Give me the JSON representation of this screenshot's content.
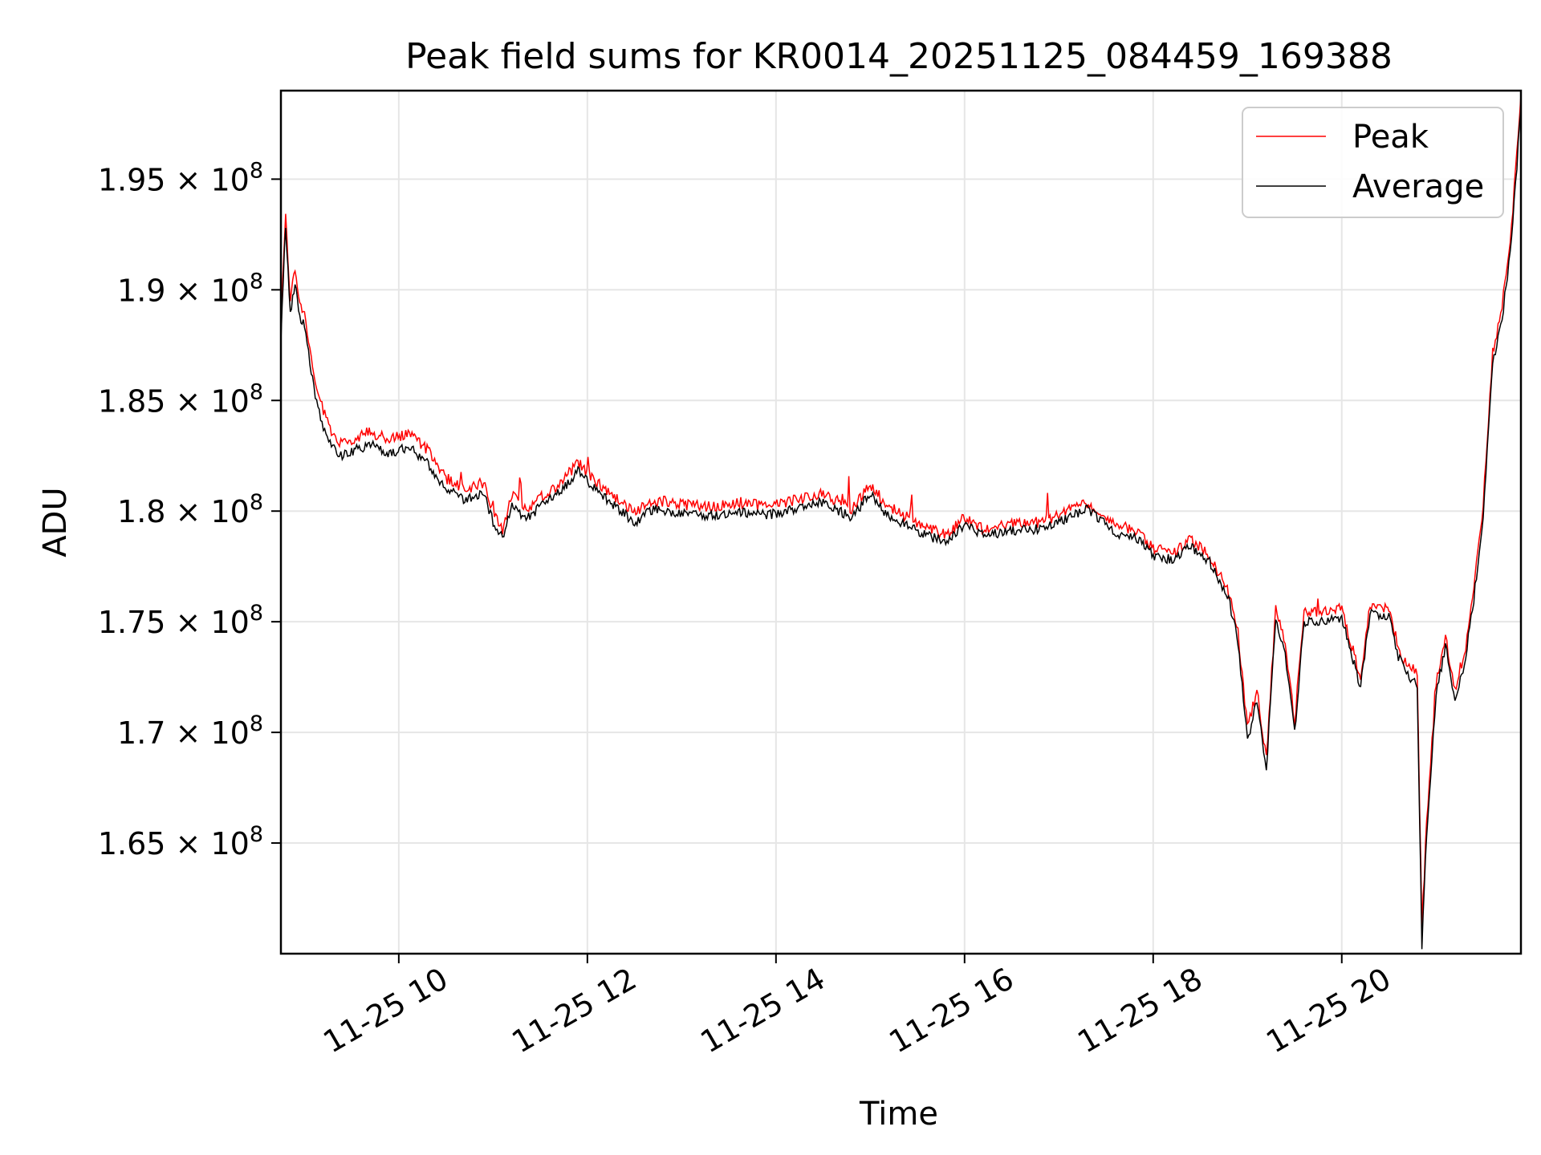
{
  "chart_data": {
    "type": "line",
    "title": "Peak field sums for KR0014_20251125_084459_169388",
    "xlabel": "Time",
    "ylabel": "ADU",
    "xlim": [
      8.75,
      21.9
    ],
    "ylim": [
      160000000,
      199000000
    ],
    "grid": true,
    "legend_position": "top-right",
    "x_ticks": [
      {
        "value": 10,
        "label": "11-25 10"
      },
      {
        "value": 12,
        "label": "11-25 12"
      },
      {
        "value": 14,
        "label": "11-25 14"
      },
      {
        "value": 16,
        "label": "11-25 16"
      },
      {
        "value": 18,
        "label": "11-25 18"
      },
      {
        "value": 20,
        "label": "11-25 20"
      }
    ],
    "y_ticks": [
      {
        "value": 165000000,
        "mantissa": "1.65",
        "exponent": "8"
      },
      {
        "value": 170000000,
        "mantissa": "1.7",
        "exponent": "8"
      },
      {
        "value": 175000000,
        "mantissa": "1.75",
        "exponent": "8"
      },
      {
        "value": 180000000,
        "mantissa": "1.8",
        "exponent": "8"
      },
      {
        "value": 185000000,
        "mantissa": "1.85",
        "exponent": "8"
      },
      {
        "value": 190000000,
        "mantissa": "1.9",
        "exponent": "8"
      },
      {
        "value": 195000000,
        "mantissa": "1.95",
        "exponent": "8"
      }
    ],
    "times_x_label": "× 10",
    "series": [
      {
        "name": "Peak",
        "color": "#ff0000"
      },
      {
        "name": "Average",
        "color": "#000000"
      }
    ],
    "x": [
      8.75,
      8.8,
      8.85,
      8.9,
      8.95,
      9.0,
      9.1,
      9.2,
      9.3,
      9.4,
      9.5,
      9.7,
      9.9,
      10.1,
      10.3,
      10.5,
      10.7,
      10.9,
      11.0,
      11.1,
      11.2,
      11.35,
      11.5,
      11.7,
      11.9,
      12.1,
      12.3,
      12.5,
      12.7,
      13.0,
      13.3,
      13.6,
      13.9,
      14.2,
      14.5,
      14.8,
      15.0,
      15.2,
      15.4,
      15.6,
      15.8,
      16.0,
      16.2,
      16.5,
      16.8,
      17.0,
      17.3,
      17.6,
      17.8,
      18.0,
      18.2,
      18.4,
      18.6,
      18.8,
      18.9,
      19.0,
      19.1,
      19.2,
      19.3,
      19.4,
      19.5,
      19.6,
      19.8,
      20.0,
      20.2,
      20.3,
      20.5,
      20.6,
      20.7,
      20.8,
      20.85,
      20.9,
      21.0,
      21.1,
      21.2,
      21.3,
      21.4,
      21.5,
      21.6,
      21.7,
      21.8,
      21.9
    ],
    "peak": [
      188500000,
      193500000,
      189500000,
      191000000,
      189200000,
      189000000,
      186000000,
      184500000,
      183500000,
      183000000,
      183200000,
      183600000,
      183200000,
      183500000,
      182800000,
      181500000,
      181000000,
      181300000,
      180000000,
      179200000,
      180800000,
      180000000,
      180600000,
      181200000,
      182200000,
      181300000,
      180600000,
      179900000,
      180500000,
      180300000,
      180200000,
      180400000,
      180200000,
      180500000,
      180800000,
      180100000,
      181200000,
      180100000,
      179700000,
      179300000,
      178900000,
      179700000,
      179200000,
      179400000,
      179500000,
      179800000,
      180400000,
      179300000,
      179200000,
      178300000,
      178100000,
      178700000,
      178000000,
      176300000,
      174500000,
      170200000,
      171900000,
      168800000,
      175600000,
      174000000,
      170500000,
      175500000,
      175400000,
      175600000,
      172400000,
      175800000,
      175600000,
      173800000,
      173000000,
      172700000,
      161200000,
      166000000,
      172200000,
      174300000,
      171900000,
      173500000,
      176400000,
      180300000,
      187200000,
      189200000,
      192800000,
      198800000
    ],
    "average": [
      187800000,
      193000000,
      188800000,
      190300000,
      188800000,
      188400000,
      185500000,
      183800000,
      182900000,
      182500000,
      182700000,
      183000000,
      182600000,
      182900000,
      182200000,
      181000000,
      180500000,
      180800000,
      179500000,
      178800000,
      180300000,
      179600000,
      180200000,
      180800000,
      181800000,
      180900000,
      180200000,
      179500000,
      180100000,
      179900000,
      179800000,
      180000000,
      179800000,
      180100000,
      180400000,
      179700000,
      180800000,
      179700000,
      179300000,
      178900000,
      178600000,
      179400000,
      178900000,
      179100000,
      179200000,
      179500000,
      180100000,
      179000000,
      178900000,
      178000000,
      177800000,
      178400000,
      177700000,
      176000000,
      174100000,
      169600000,
      171500000,
      168300000,
      175100000,
      173500000,
      170000000,
      175000000,
      175000000,
      175200000,
      172000000,
      175400000,
      175200000,
      173400000,
      172600000,
      172200000,
      160300000,
      165400000,
      171700000,
      173900000,
      171500000,
      173100000,
      176000000,
      179800000,
      186600000,
      188700000,
      192200000,
      198200000
    ]
  }
}
